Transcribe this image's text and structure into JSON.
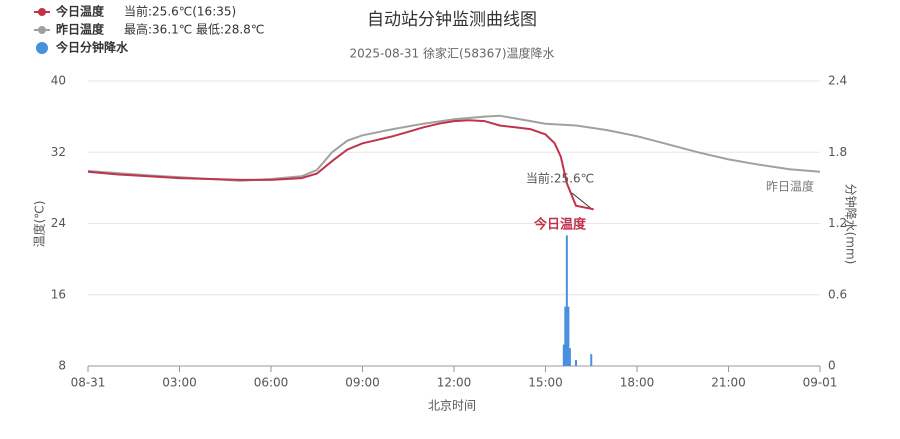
{
  "chart_data": {
    "type": "line",
    "title": "自动站分钟监测曲线图",
    "subtitle": "2025-08-31 徐家汇(58367)温度降水",
    "xlabel": "北京时间",
    "ylabel": "温度(℃)",
    "y2label": "分钟降水(mm)",
    "xlim": [
      0,
      24
    ],
    "xticks": [
      {
        "value": 0,
        "label": "08-31"
      },
      {
        "value": 3,
        "label": "03:00"
      },
      {
        "value": 6,
        "label": "06:00"
      },
      {
        "value": 9,
        "label": "09:00"
      },
      {
        "value": 12,
        "label": "12:00"
      },
      {
        "value": 15,
        "label": "15:00"
      },
      {
        "value": 18,
        "label": "18:00"
      },
      {
        "value": 21,
        "label": "21:00"
      },
      {
        "value": 24,
        "label": "09-01"
      }
    ],
    "ylim": [
      8,
      40
    ],
    "yticks": [
      8,
      16,
      24,
      32,
      40
    ],
    "y2lim": [
      0,
      2.4
    ],
    "y2ticks": [
      0,
      0.6,
      1.2,
      1.8,
      2.4
    ],
    "grid": true,
    "legend": "top-left",
    "series": [
      {
        "name": "今日温度",
        "note": "当前:25.6℃(16:35)",
        "color": "#c0334d",
        "kind": "line",
        "x": [
          0,
          1,
          2,
          3,
          4,
          5,
          6,
          7,
          7.5,
          8,
          8.5,
          9,
          9.5,
          10,
          10.5,
          11,
          11.5,
          12,
          12.5,
          13,
          13.5,
          14,
          14.5,
          15,
          15.3,
          15.5,
          15.7,
          16,
          16.58
        ],
        "values": [
          29.8,
          29.5,
          29.3,
          29.1,
          29.0,
          28.9,
          28.9,
          29.1,
          29.6,
          31.0,
          32.3,
          33.0,
          33.4,
          33.8,
          34.3,
          34.8,
          35.2,
          35.5,
          35.6,
          35.5,
          35.0,
          34.8,
          34.6,
          34.0,
          33.0,
          31.5,
          28.5,
          26.0,
          25.6
        ]
      },
      {
        "name": "昨日温度",
        "note": "最高:36.1℃ 最低:28.8℃",
        "color": "#a0a0a0",
        "kind": "line",
        "x": [
          0,
          2,
          4,
          5,
          6,
          7,
          7.5,
          8,
          8.5,
          9,
          10,
          11,
          12,
          13,
          13.5,
          14,
          15,
          16,
          17,
          18,
          19,
          20,
          21,
          22,
          23,
          24
        ],
        "values": [
          29.9,
          29.4,
          29.0,
          28.8,
          29.0,
          29.3,
          30.0,
          32.0,
          33.3,
          33.9,
          34.6,
          35.2,
          35.7,
          36.0,
          36.1,
          35.8,
          35.2,
          35.0,
          34.5,
          33.8,
          32.9,
          32.0,
          31.2,
          30.6,
          30.1,
          29.8
        ]
      },
      {
        "name": "今日分钟降水",
        "color": "#4a8fe0",
        "kind": "bar",
        "axis": "y2",
        "x": [
          15.6,
          15.65,
          15.7,
          15.75,
          15.8,
          16.0,
          16.5
        ],
        "values": [
          0.18,
          0.5,
          1.1,
          0.5,
          0.15,
          0.05,
          0.1
        ]
      }
    ],
    "annotations": [
      {
        "text": "当前:25.6℃",
        "color": "#555555"
      },
      {
        "text": "今日温度",
        "color": "#c0334d"
      },
      {
        "text": "昨日温度",
        "color": "#777777"
      }
    ]
  }
}
